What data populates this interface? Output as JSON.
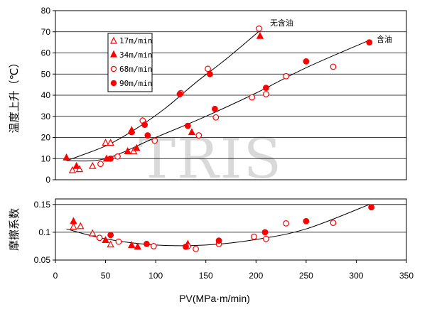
{
  "watermark": "TRIS",
  "colors": {
    "marker": "#ff0000",
    "axis": "#000000",
    "grid": "#000000",
    "fit": "#000000"
  },
  "legend": [
    {
      "label": "17m/min",
      "marker": "triangle-open"
    },
    {
      "label": "34m/min",
      "marker": "triangle-filled"
    },
    {
      "label": "68m/min",
      "marker": "circle-open"
    },
    {
      "label": "90m/min",
      "marker": "circle-filled"
    }
  ],
  "chart_data": [
    {
      "type": "scatter",
      "ylabel": "温度上升（℃）",
      "xlim": [
        0,
        350
      ],
      "ylim": [
        0,
        80
      ],
      "yticks": [
        0,
        10,
        20,
        30,
        40,
        50,
        60,
        70,
        80
      ],
      "grid": {
        "horizontal": true,
        "vertical": false
      },
      "legend_position": "top-left",
      "series": [
        {
          "name": "17m/min",
          "marker": "triangle-open",
          "points": [
            [
              17,
              4.5
            ],
            [
              24,
              5
            ],
            [
              37,
              6.5
            ],
            [
              50,
              17.5
            ],
            [
              55,
              17.5
            ],
            [
              78,
              13.5
            ]
          ]
        },
        {
          "name": "34m/min",
          "marker": "triangle-filled",
          "points": [
            [
              11,
              10.5
            ],
            [
              21,
              6.5
            ],
            [
              51,
              10
            ],
            [
              72,
              13.5
            ],
            [
              76,
              23.5
            ],
            [
              81,
              15
            ],
            [
              136,
              22.5
            ],
            [
              204,
              68
            ]
          ]
        },
        {
          "name": "68m/min",
          "marker": "circle-open",
          "points": [
            [
              45,
              7.5
            ],
            [
              62,
              11
            ],
            [
              87,
              28
            ],
            [
              99,
              18.5
            ],
            [
              125,
              41
            ],
            [
              143,
              21
            ],
            [
              152,
              52.5
            ],
            [
              160,
              29.5
            ],
            [
              196,
              39
            ],
            [
              203,
              71.5
            ],
            [
              210,
              40.5
            ],
            [
              230,
              49
            ],
            [
              277,
              53.5
            ]
          ]
        },
        {
          "name": "90m/min",
          "marker": "circle-filled",
          "points": [
            [
              55,
              10
            ],
            [
              76,
              22.5
            ],
            [
              89,
              26
            ],
            [
              92,
              21
            ],
            [
              124,
              40.5
            ],
            [
              132,
              25.5
            ],
            [
              154,
              50
            ],
            [
              159,
              33.5
            ],
            [
              210,
              43.5
            ],
            [
              250,
              56
            ],
            [
              313,
              65
            ]
          ]
        }
      ],
      "fit_lines": [
        {
          "label": "无含油",
          "points": [
            [
              11,
              9
            ],
            [
              50,
              16
            ],
            [
              80,
              24
            ],
            [
              110,
              34
            ],
            [
              140,
              46
            ],
            [
              170,
              57
            ],
            [
              205,
              71
            ]
          ]
        },
        {
          "label": "含油",
          "points": [
            [
              11,
              9
            ],
            [
              50,
              10
            ],
            [
              100,
              20
            ],
            [
              150,
              30
            ],
            [
              200,
              41
            ],
            [
              250,
              53
            ],
            [
              313,
              66
            ]
          ]
        }
      ]
    },
    {
      "type": "scatter",
      "ylabel": "摩擦系数",
      "xlabel": "PV(MPa·m/min)",
      "xlim": [
        0,
        350
      ],
      "xticks": [
        0,
        50,
        100,
        150,
        200,
        250,
        300,
        350
      ],
      "ylim": [
        0.05,
        0.16
      ],
      "yticks": [
        0.05,
        0.1,
        0.15
      ],
      "ytick_labels": [
        "0.05",
        "0.1",
        "0.15"
      ],
      "grid": {
        "horizontal": true,
        "vertical": false
      },
      "series": [
        {
          "name": "17m/min",
          "marker": "triangle-open",
          "points": [
            [
              18,
              0.11
            ],
            [
              25,
              0.111
            ],
            [
              37,
              0.098
            ],
            [
              55,
              0.078
            ]
          ]
        },
        {
          "name": "34m/min",
          "marker": "triangle-filled",
          "points": [
            [
              18,
              0.12
            ],
            [
              50,
              0.086
            ],
            [
              76,
              0.077
            ],
            [
              82,
              0.074
            ],
            [
              132,
              0.079
            ]
          ]
        },
        {
          "name": "68m/min",
          "marker": "circle-open",
          "points": [
            [
              44,
              0.09
            ],
            [
              63,
              0.083
            ],
            [
              98,
              0.075
            ],
            [
              132,
              0.075
            ],
            [
              140,
              0.07
            ],
            [
              163,
              0.079
            ],
            [
              198,
              0.092
            ],
            [
              210,
              0.088
            ],
            [
              230,
              0.116
            ],
            [
              277,
              0.117
            ]
          ]
        },
        {
          "name": "90m/min",
          "marker": "circle-filled",
          "points": [
            [
              55,
              0.095
            ],
            [
              91,
              0.079
            ],
            [
              130,
              0.074
            ],
            [
              163,
              0.085
            ],
            [
              209,
              0.1
            ],
            [
              250,
              0.12
            ],
            [
              315,
              0.145
            ]
          ]
        }
      ],
      "fit_lines": [
        {
          "label": "",
          "points": [
            [
              11,
              0.106
            ],
            [
              50,
              0.088
            ],
            [
              100,
              0.077
            ],
            [
              150,
              0.077
            ],
            [
              200,
              0.087
            ],
            [
              250,
              0.106
            ],
            [
              313,
              0.15
            ]
          ]
        }
      ]
    }
  ]
}
